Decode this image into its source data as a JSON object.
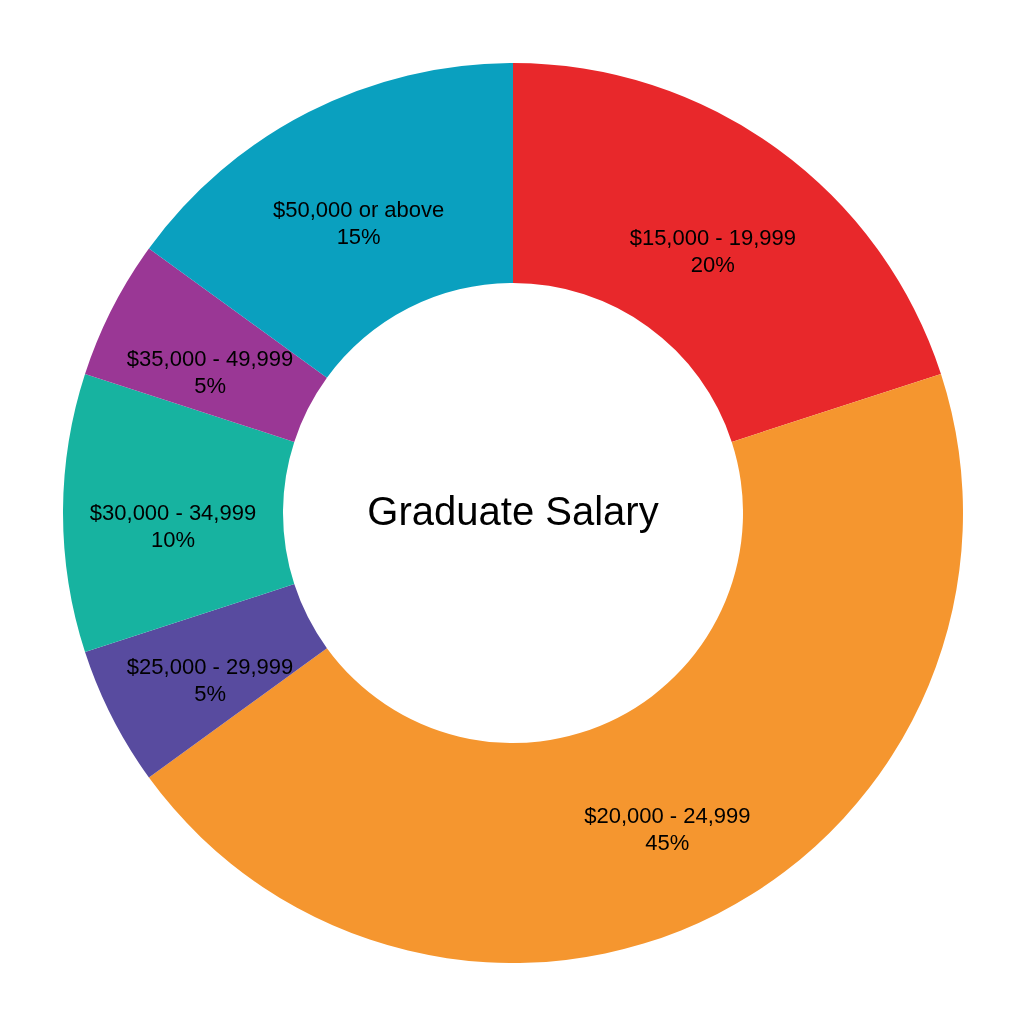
{
  "chart_data": {
    "type": "donut",
    "title": "Graduate Salary",
    "categories": [
      "$15,000 - 19,999",
      "$20,000 - 24,999",
      "$25,000 - 29,999",
      "$30,000 - 34,999",
      "$35,000 - 49,999",
      "$50,000 or above"
    ],
    "values": [
      20,
      45,
      5,
      10,
      5,
      15
    ],
    "value_labels": [
      "20%",
      "45%",
      "5%",
      "10%",
      "5%",
      "15%"
    ],
    "colors": [
      "#e8282b",
      "#f5962f",
      "#584b9f",
      "#17b3a0",
      "#9a3795",
      "#0aa0bf"
    ],
    "legend": false
  }
}
